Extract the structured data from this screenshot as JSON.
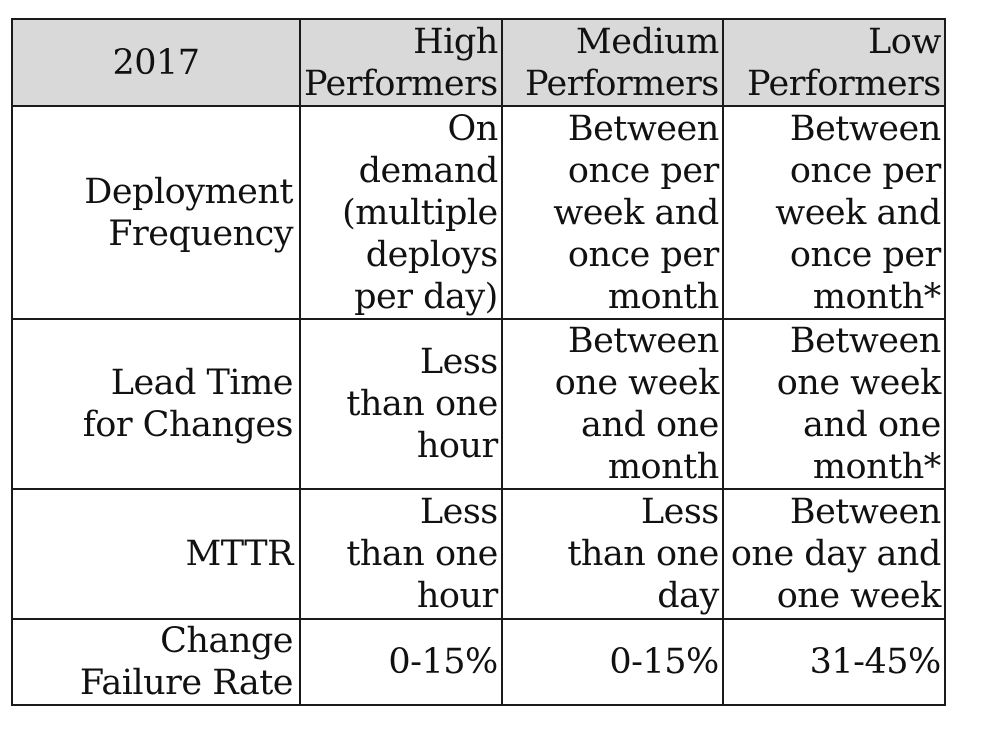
{
  "chart_data": {
    "type": "table",
    "columns": [
      "2017",
      "High\nPerformers",
      "Medium\nPerformers",
      "Low\nPerformers"
    ],
    "rows": [
      {
        "label": "Deployment\nFrequency",
        "cells": [
          "On\ndemand\n(multiple\ndeploys\nper day)",
          "Between\nonce per\nweek and\nonce per\nmonth",
          "Between\nonce per\nweek and\nonce per\nmonth*"
        ]
      },
      {
        "label": "Lead Time\nfor Changes",
        "cells": [
          "Less\nthan one\nhour",
          "Between\none week\nand one\nmonth",
          "Between\none week\nand one\nmonth*"
        ]
      },
      {
        "label": "MTTR",
        "cells": [
          "Less\nthan one\nhour",
          "Less\nthan one day",
          "Between\none day and\none week"
        ]
      },
      {
        "label": "Change\nFailure Rate",
        "cells": [
          "0-15%",
          "0-15%",
          "31-45%"
        ]
      }
    ],
    "colors": {
      "header_background": "#d9d9d9",
      "border": "#1a1a1a"
    }
  }
}
